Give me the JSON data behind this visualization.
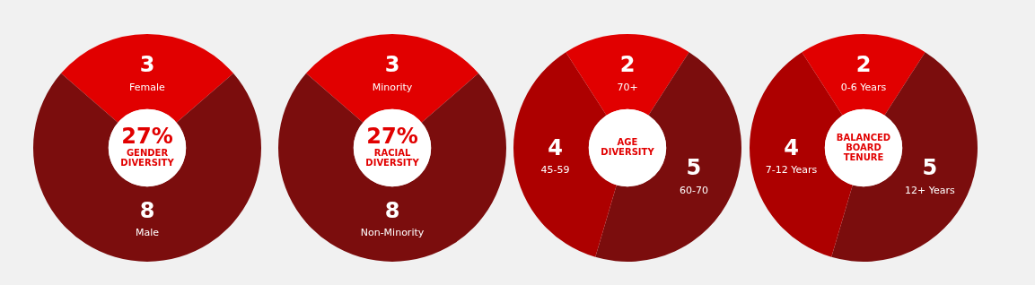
{
  "chart_data": [
    {
      "type": "donut",
      "title": "GENDER DIVERSITY",
      "annotations": [
        "27%"
      ],
      "categories": [
        "Female",
        "Male"
      ],
      "values": [
        3,
        8
      ],
      "colors": [
        "#e10000",
        "#7b0d0d"
      ],
      "data_labels": true,
      "legend": false
    },
    {
      "type": "donut",
      "title": "RACIAL DIVERSITY",
      "annotations": [
        "27%"
      ],
      "categories": [
        "Minority",
        "Non-Minority"
      ],
      "values": [
        3,
        8
      ],
      "colors": [
        "#e10000",
        "#7b0d0d"
      ],
      "data_labels": true,
      "legend": false
    },
    {
      "type": "donut",
      "title": "AGE DIVERSITY",
      "categories": [
        "70+",
        "60-70",
        "45-59"
      ],
      "values": [
        2,
        5,
        4
      ],
      "colors": [
        "#e10000",
        "#7b0d0d",
        "#ad0000"
      ],
      "data_labels": true,
      "legend": false
    },
    {
      "type": "donut",
      "title": "BALANCED BOARD TENURE",
      "categories": [
        "0-6 Years",
        "12+ Years",
        "7-12 Years"
      ],
      "values": [
        2,
        5,
        4
      ],
      "colors": [
        "#e10000",
        "#7b0d0d",
        "#ad0000"
      ],
      "data_labels": true,
      "legend": false
    }
  ]
}
